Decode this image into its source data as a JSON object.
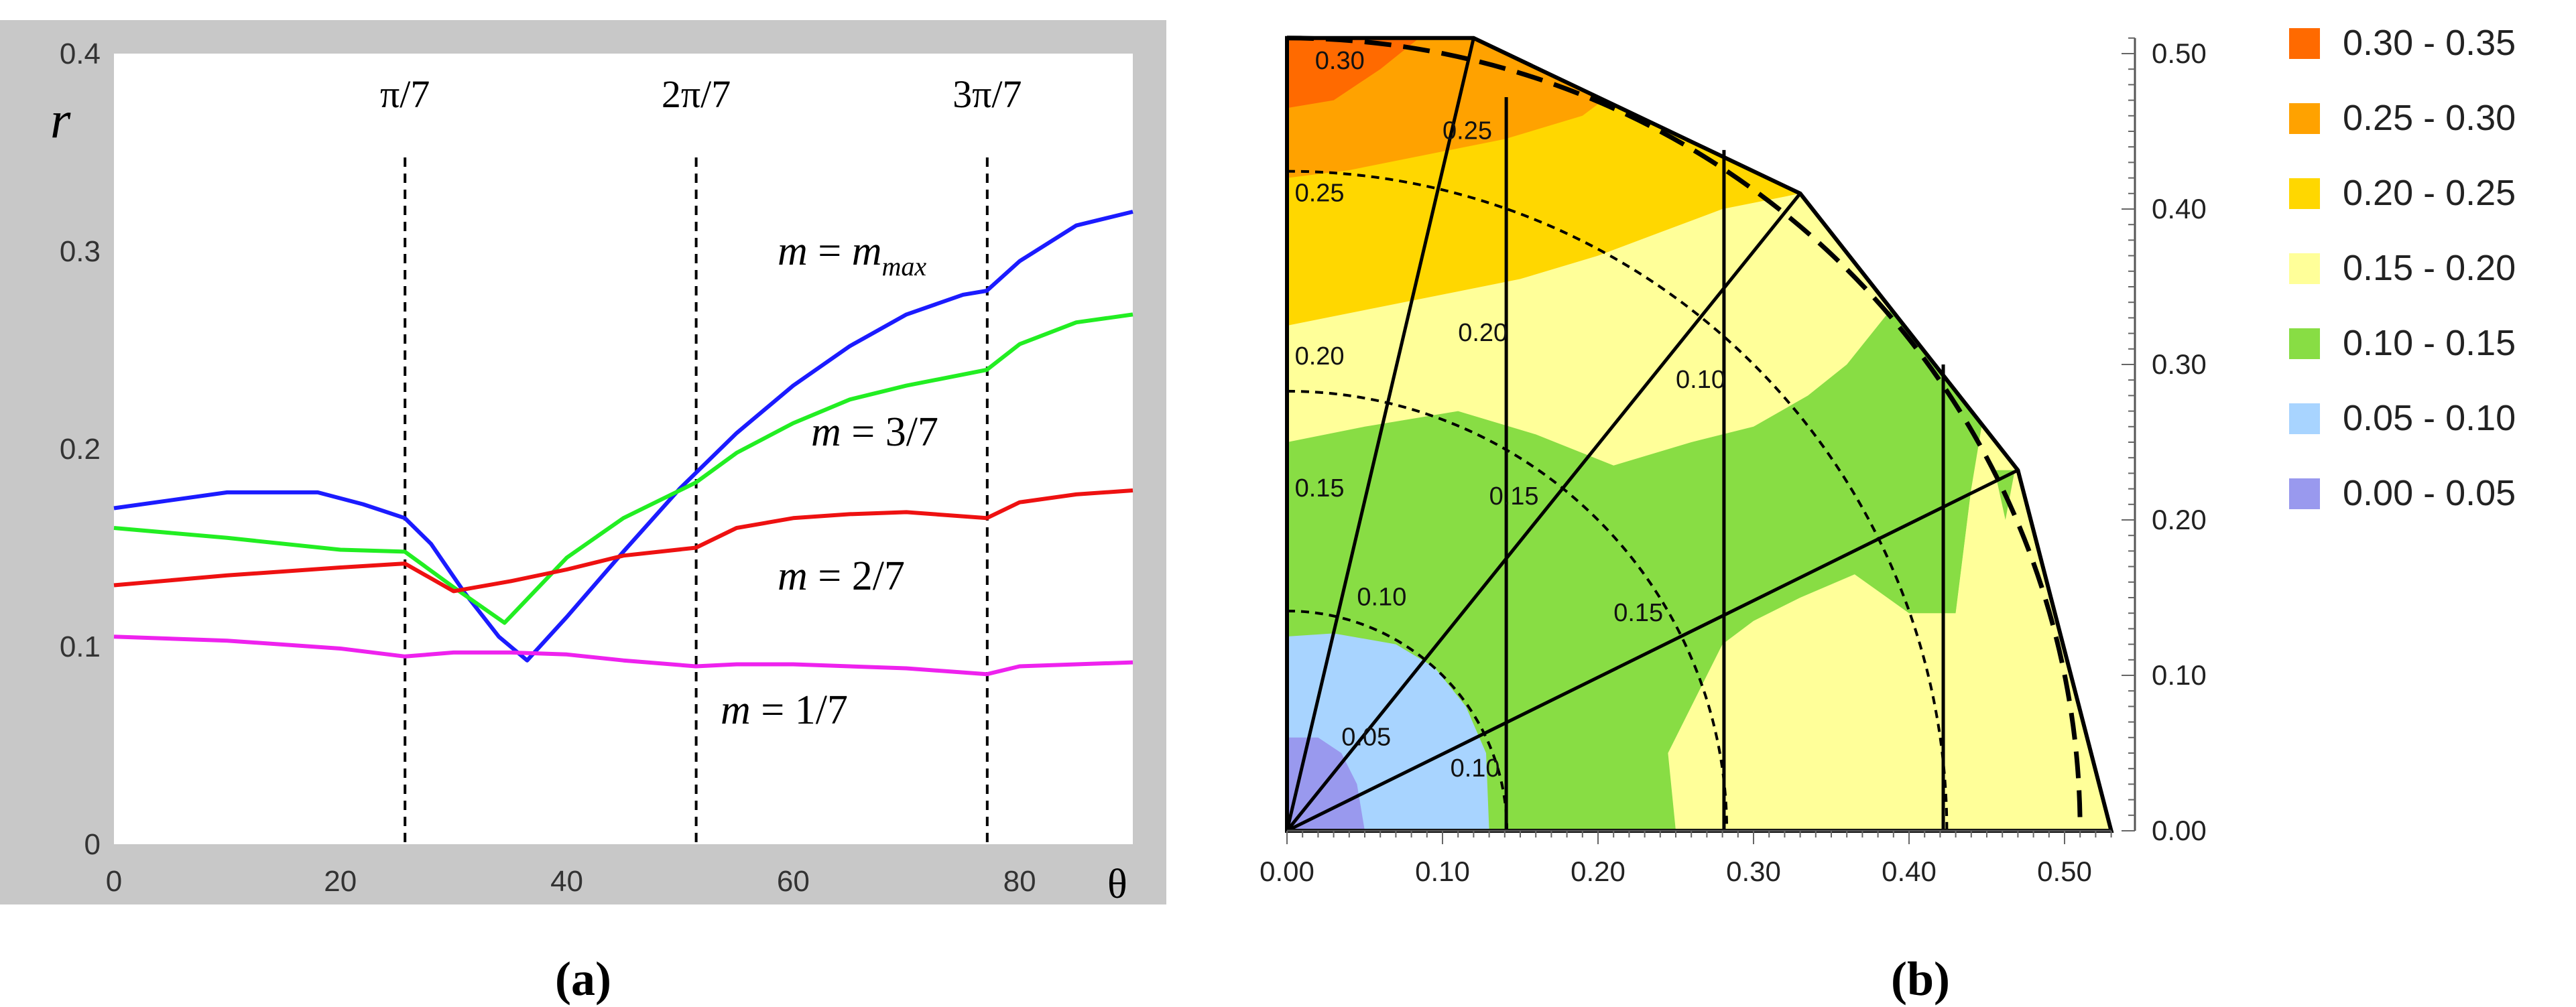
{
  "chart_data": [
    {
      "panel": "(a)",
      "type": "line",
      "xlabel": "θ",
      "ylabel": "r",
      "xlim": [
        0,
        90
      ],
      "ylim": [
        0,
        0.4
      ],
      "x_ticks": [
        "0",
        "20",
        "40",
        "60",
        "80"
      ],
      "y_ticks": [
        "0",
        "0.1",
        "0.2",
        "0.3",
        "0.4"
      ],
      "vlines": [
        {
          "x": 25.71,
          "label": "π/7"
        },
        {
          "x": 51.43,
          "label": "2π/7"
        },
        {
          "x": 77.14,
          "label": "3π/7"
        }
      ],
      "series": [
        {
          "name_parts": [
            "m",
            " = ",
            "m",
            "max"
          ],
          "color": "#1b1bff",
          "x": [
            0,
            5,
            10,
            15,
            18,
            22,
            25.7,
            28,
            31,
            34,
            36.5,
            40,
            45,
            50,
            55,
            60,
            65,
            70,
            75,
            77.1,
            80,
            85,
            90
          ],
          "y": [
            0.17,
            0.174,
            0.178,
            0.178,
            0.178,
            0.172,
            0.165,
            0.152,
            0.127,
            0.105,
            0.093,
            0.115,
            0.148,
            0.18,
            0.208,
            0.232,
            0.252,
            0.268,
            0.278,
            0.28,
            0.295,
            0.313,
            0.32
          ]
        },
        {
          "name": "m = 3/7",
          "color": "#22ee22",
          "x": [
            0,
            10,
            20,
            25.7,
            30,
            34.5,
            40,
            45,
            51.4,
            55,
            60,
            65,
            70,
            77.1,
            80,
            85,
            90
          ],
          "y": [
            0.16,
            0.155,
            0.149,
            0.148,
            0.13,
            0.112,
            0.145,
            0.165,
            0.183,
            0.198,
            0.213,
            0.225,
            0.232,
            0.24,
            0.253,
            0.264,
            0.268
          ]
        },
        {
          "name": "m = 2/7",
          "color": "#ee1111",
          "x": [
            0,
            10,
            20,
            25.7,
            30,
            35,
            40,
            45,
            51.4,
            55,
            60,
            65,
            70,
            77.1,
            80,
            85,
            90
          ],
          "y": [
            0.131,
            0.136,
            0.14,
            0.142,
            0.128,
            0.133,
            0.139,
            0.146,
            0.15,
            0.16,
            0.165,
            0.167,
            0.168,
            0.165,
            0.173,
            0.177,
            0.179
          ]
        },
        {
          "name": "m = 1/7",
          "color": "#ee22ee",
          "x": [
            0,
            10,
            20,
            25.7,
            30,
            35,
            40,
            45,
            51.4,
            55,
            60,
            70,
            77.1,
            80,
            90
          ],
          "y": [
            0.105,
            0.103,
            0.099,
            0.095,
            0.097,
            0.097,
            0.096,
            0.093,
            0.09,
            0.091,
            0.091,
            0.089,
            0.086,
            0.09,
            0.092
          ]
        }
      ]
    },
    {
      "panel": "(b)",
      "type": "heatmap",
      "x_ticks": [
        "0.00",
        "0.10",
        "0.20",
        "0.30",
        "0.40",
        "0.50"
      ],
      "y_ticks": [
        "0.00",
        "0.10",
        "0.20",
        "0.30",
        "0.40",
        "0.50"
      ],
      "xlim": [
        0,
        0.53
      ],
      "ylim": [
        0,
        0.51
      ],
      "legend_position": "right",
      "legend": [
        {
          "label": "0.30 - 0.35",
          "color": "#ff6a00"
        },
        {
          "label": "0.25 - 0.30",
          "color": "#ffa200"
        },
        {
          "label": "0.20 - 0.25",
          "color": "#ffd700"
        },
        {
          "label": "0.15 - 0.20",
          "color": "#ffff99"
        },
        {
          "label": "0.10 - 0.15",
          "color": "#88dd44"
        },
        {
          "label": "0.05 - 0.10",
          "color": "#a8d4ff"
        },
        {
          "label": "0.00 - 0.05",
          "color": "#9999ee"
        }
      ],
      "contour_labels": [
        {
          "text": "0.30",
          "x": 0.018,
          "y": 0.49
        },
        {
          "text": "0.25",
          "x": 0.1,
          "y": 0.445
        },
        {
          "text": "0.25",
          "x": 0.005,
          "y": 0.405
        },
        {
          "text": "0.20",
          "x": 0.005,
          "y": 0.3
        },
        {
          "text": "0.20",
          "x": 0.11,
          "y": 0.315
        },
        {
          "text": "0.15",
          "x": 0.005,
          "y": 0.215
        },
        {
          "text": "0.15",
          "x": 0.13,
          "y": 0.21
        },
        {
          "text": "0.10",
          "x": 0.045,
          "y": 0.145
        },
        {
          "text": "0.10",
          "x": 0.25,
          "y": 0.285
        },
        {
          "text": "0.15",
          "x": 0.21,
          "y": 0.135
        },
        {
          "text": "0.05",
          "x": 0.035,
          "y": 0.055
        },
        {
          "text": "0.10",
          "x": 0.105,
          "y": 0.035
        }
      ]
    }
  ],
  "captions": {
    "a": "(a)",
    "b": "(b)"
  }
}
